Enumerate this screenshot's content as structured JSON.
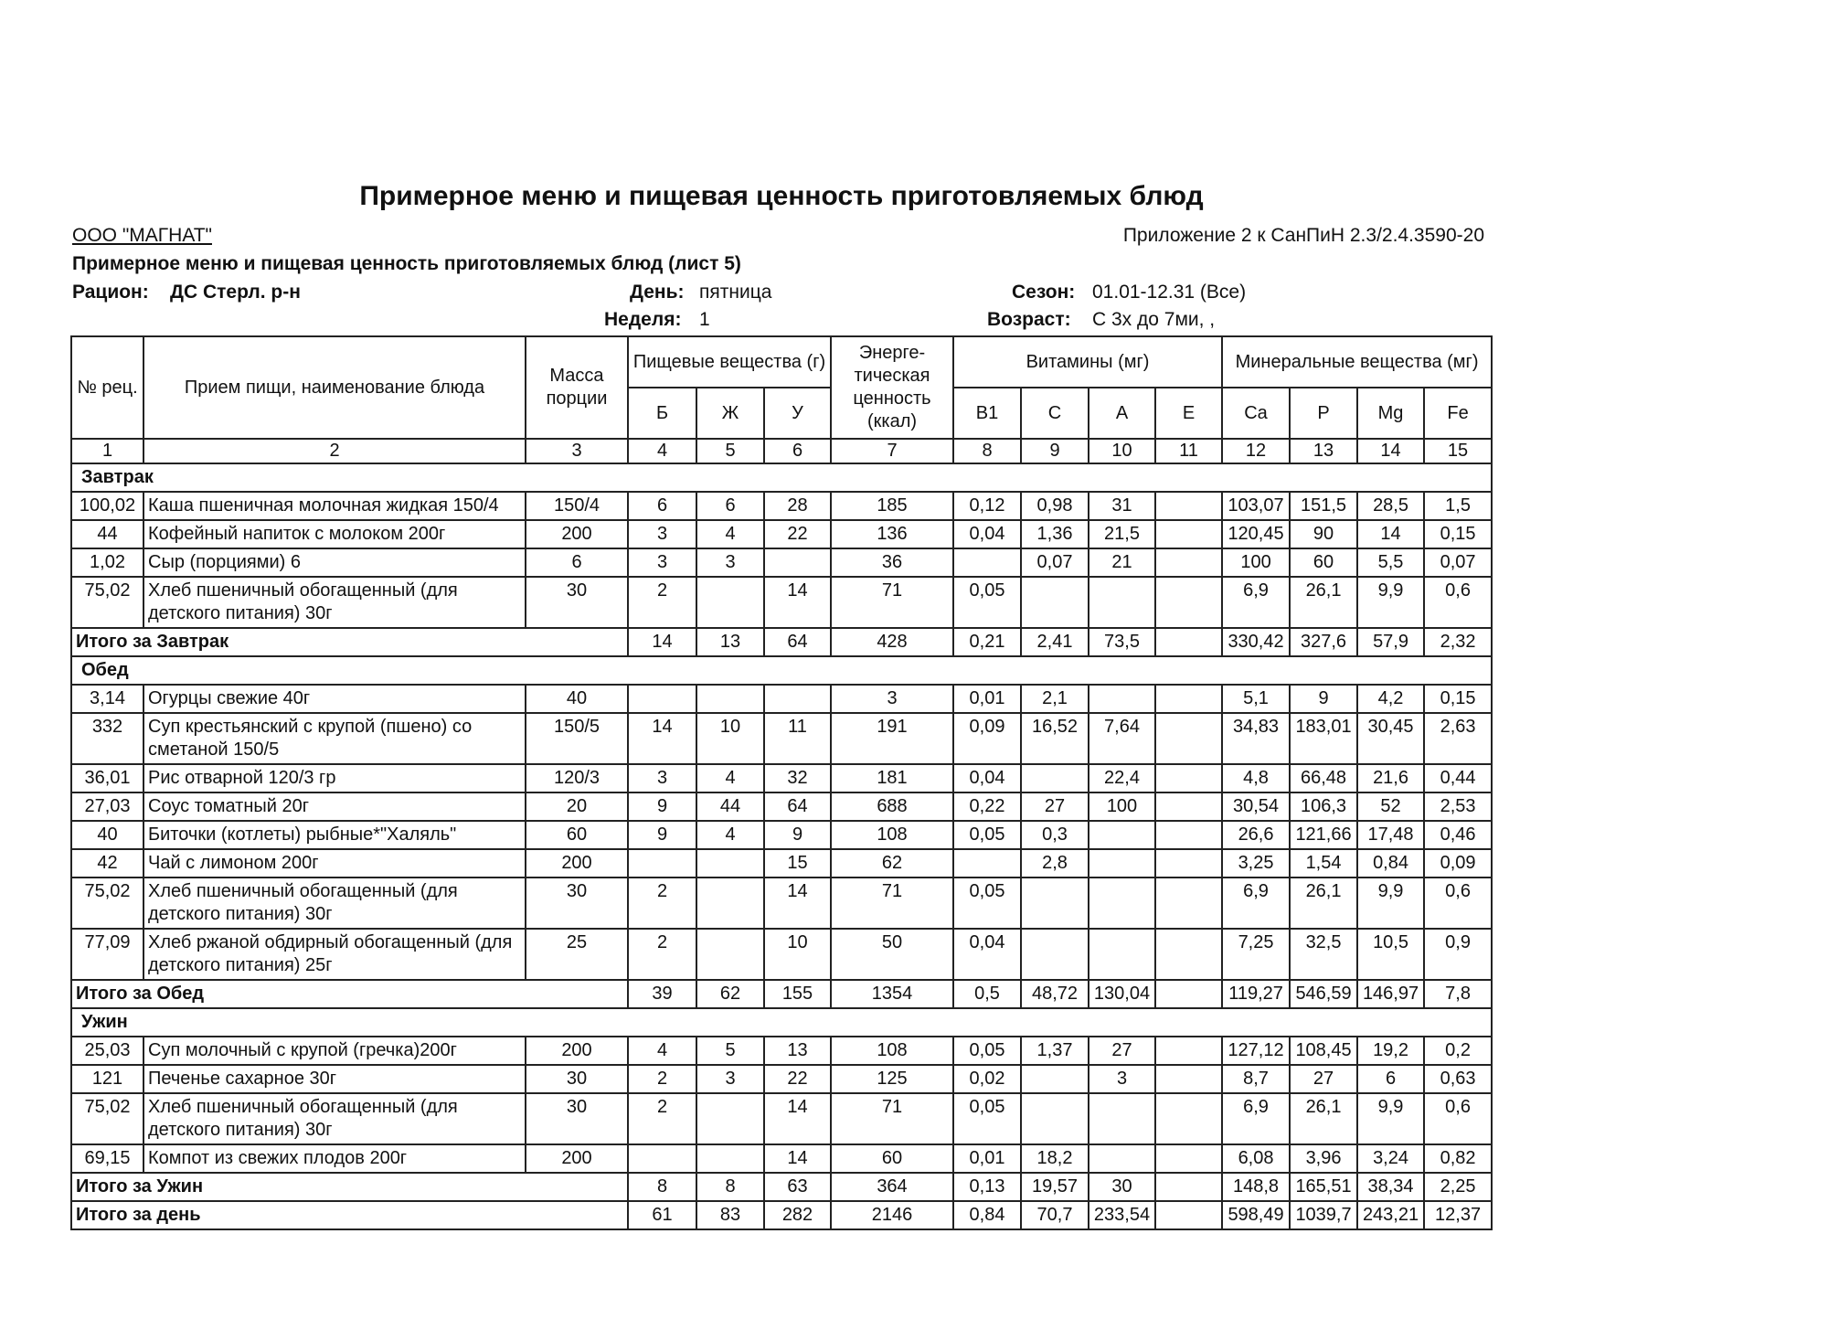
{
  "title": "Примерное меню и пищевая ценность приготовляемых блюд",
  "org": "ООО \"МАГНАТ\"",
  "appendix": "Приложение 2 к СанПиН 2.3/2.4.3590-20",
  "subtitle": "Примерное меню и пищевая ценность приготовляемых блюд (лист 5)",
  "meta": {
    "ration_label": "Рацион:",
    "ration": "ДС Стерл. р-н",
    "day_label": "День:",
    "day": "пятница",
    "season_label": "Сезон:",
    "season": "01.01-12.31 (Все)",
    "week_label": "Неделя:",
    "week": "1",
    "age_label": "Возраст:",
    "age": "С 3х до 7ми, ,"
  },
  "table": {
    "header": {
      "num": "№ рец.",
      "name": "Прием пищи, наименование блюда",
      "mass": "Масса порции",
      "nutrients": "Пищевые вещества (г)",
      "nutrient_cols": [
        "Б",
        "Ж",
        "У"
      ],
      "energy": "Энерге- тическая ценность (ккал)",
      "vitamins": "Витамины (мг)",
      "vitamin_cols": [
        "B1",
        "C",
        "A",
        "E"
      ],
      "minerals": "Минеральные вещества (мг)",
      "mineral_cols": [
        "Ca",
        "P",
        "Mg",
        "Fe"
      ]
    },
    "col_numbers": [
      "1",
      "2",
      "3",
      "4",
      "5",
      "6",
      "7",
      "8",
      "9",
      "10",
      "11",
      "12",
      "13",
      "14",
      "15"
    ],
    "sections": [
      {
        "name": "Завтрак",
        "items": [
          [
            "100,02",
            "Каша пшеничная молочная жидкая 150/4",
            "150/4",
            "6",
            "6",
            "28",
            "185",
            "0,12",
            "0,98",
            "31",
            null,
            "103,07",
            "151,5",
            "28,5",
            "1,5"
          ],
          [
            "44",
            "Кофейный напиток с молоком 200г",
            "200",
            "3",
            "4",
            "22",
            "136",
            "0,04",
            "1,36",
            "21,5",
            null,
            "120,45",
            "90",
            "14",
            "0,15"
          ],
          [
            "1,02",
            "Сыр (порциями) 6",
            "6",
            "3",
            "3",
            null,
            "36",
            null,
            "0,07",
            "21",
            null,
            "100",
            "60",
            "5,5",
            "0,07"
          ],
          [
            "75,02",
            "Хлеб пшеничный обогащенный (для детского питания) 30г",
            "30",
            "2",
            null,
            "14",
            "71",
            "0,05",
            null,
            null,
            null,
            "6,9",
            "26,1",
            "9,9",
            "0,6"
          ]
        ],
        "total": [
          "Итого за Завтрак",
          "14",
          "13",
          "64",
          "428",
          "0,21",
          "2,41",
          "73,5",
          null,
          "330,42",
          "327,6",
          "57,9",
          "2,32"
        ]
      },
      {
        "name": "Обед",
        "items": [
          [
            "3,14",
            "Огурцы свежие 40г",
            "40",
            null,
            null,
            null,
            "3",
            "0,01",
            "2,1",
            null,
            null,
            "5,1",
            "9",
            "4,2",
            "0,15"
          ],
          [
            "332",
            "Суп крестьянский с крупой (пшено) со сметаной 150/5",
            "150/5",
            "14",
            "10",
            "11",
            "191",
            "0,09",
            "16,52",
            "7,64",
            null,
            "34,83",
            "183,01",
            "30,45",
            "2,63"
          ],
          [
            "36,01",
            "Рис отварной 120/3 гр",
            "120/3",
            "3",
            "4",
            "32",
            "181",
            "0,04",
            null,
            "22,4",
            null,
            "4,8",
            "66,48",
            "21,6",
            "0,44"
          ],
          [
            "27,03",
            "Соус томатный 20г",
            "20",
            "9",
            "44",
            "64",
            "688",
            "0,22",
            "27",
            "100",
            null,
            "30,54",
            "106,3",
            "52",
            "2,53"
          ],
          [
            "40",
            "Биточки (котлеты) рыбные*\"Халяль\"",
            "60",
            "9",
            "4",
            "9",
            "108",
            "0,05",
            "0,3",
            null,
            null,
            "26,6",
            "121,66",
            "17,48",
            "0,46"
          ],
          [
            "42",
            "Чай с лимоном 200г",
            "200",
            null,
            null,
            "15",
            "62",
            null,
            "2,8",
            null,
            null,
            "3,25",
            "1,54",
            "0,84",
            "0,09"
          ],
          [
            "75,02",
            "Хлеб пшеничный обогащенный (для детского питания) 30г",
            "30",
            "2",
            null,
            "14",
            "71",
            "0,05",
            null,
            null,
            null,
            "6,9",
            "26,1",
            "9,9",
            "0,6"
          ],
          [
            "77,09",
            "Хлеб ржаной обдирный обогащенный (для детского питания) 25г",
            "25",
            "2",
            null,
            "10",
            "50",
            "0,04",
            null,
            null,
            null,
            "7,25",
            "32,5",
            "10,5",
            "0,9"
          ]
        ],
        "total": [
          "Итого за Обед",
          "39",
          "62",
          "155",
          "1354",
          "0,5",
          "48,72",
          "130,04",
          null,
          "119,27",
          "546,59",
          "146,97",
          "7,8"
        ]
      },
      {
        "name": "Ужин",
        "items": [
          [
            "25,03",
            "Суп молочный с крупой (гречка)200г",
            "200",
            "4",
            "5",
            "13",
            "108",
            "0,05",
            "1,37",
            "27",
            null,
            "127,12",
            "108,45",
            "19,2",
            "0,2"
          ],
          [
            "121",
            "Печенье сахарное 30г",
            "30",
            "2",
            "3",
            "22",
            "125",
            "0,02",
            null,
            "3",
            null,
            "8,7",
            "27",
            "6",
            "0,63"
          ],
          [
            "75,02",
            "Хлеб пшеничный обогащенный (для детского питания) 30г",
            "30",
            "2",
            null,
            "14",
            "71",
            "0,05",
            null,
            null,
            null,
            "6,9",
            "26,1",
            "9,9",
            "0,6"
          ],
          [
            "69,15",
            "Компот из свежих плодов 200г",
            "200",
            null,
            null,
            "14",
            "60",
            "0,01",
            "18,2",
            null,
            null,
            "6,08",
            "3,96",
            "3,24",
            "0,82"
          ]
        ],
        "total": [
          "Итого за Ужин",
          "8",
          "8",
          "63",
          "364",
          "0,13",
          "19,57",
          "30",
          null,
          "148,8",
          "165,51",
          "38,34",
          "2,25"
        ]
      }
    ],
    "day_total": [
      "Итого за день",
      "61",
      "83",
      "282",
      "2146",
      "0,84",
      "70,7",
      "233,54",
      null,
      "598,49",
      "1039,7",
      "243,21",
      "12,37"
    ]
  }
}
